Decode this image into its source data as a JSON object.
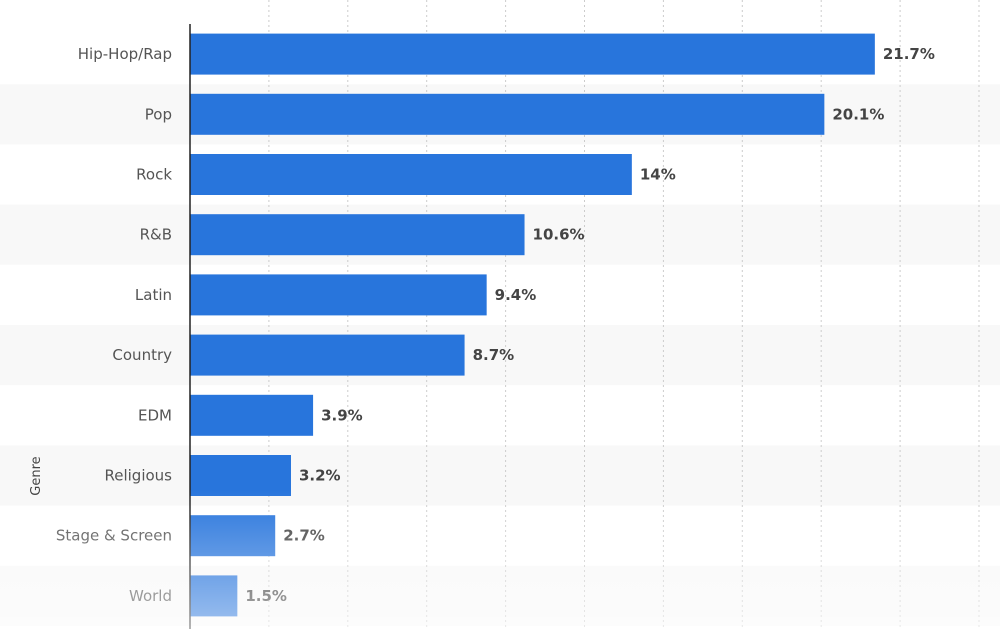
{
  "chart_data": {
    "type": "bar",
    "orientation": "horizontal",
    "categories": [
      "Hip-Hop/Rap",
      "Pop",
      "Rock",
      "R&B",
      "Latin",
      "Country",
      "EDM",
      "Religious",
      "Stage & Screen",
      "World"
    ],
    "values": [
      21.7,
      20.1,
      14,
      10.6,
      9.4,
      8.7,
      3.9,
      3.2,
      2.7,
      1.5
    ],
    "value_labels": [
      "21.7%",
      "20.1%",
      "14%",
      "10.6%",
      "9.4%",
      "8.7%",
      "3.9%",
      "3.2%",
      "2.7%",
      "1.5%"
    ],
    "ylabel": "Genre",
    "xlim": [
      0,
      25
    ],
    "grid": true,
    "bar_color": "#2875dc",
    "band_color": "#f8f8f8"
  }
}
